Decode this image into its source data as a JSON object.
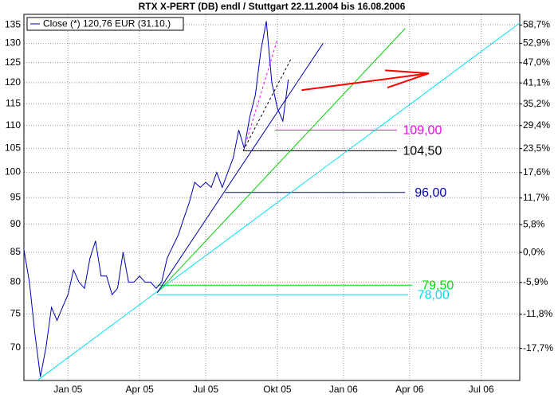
{
  "chart_data": {
    "type": "line",
    "title": "RTX X-PERT (DB) endl / Stuttgart 22.11.2004 bis 16.08.2006",
    "log_scale": true,
    "grid": true,
    "legend": "top-left",
    "categories": [
      null,
      null,
      null,
      null,
      null,
      null,
      null,
      null,
      "Jan 05",
      null,
      null,
      null,
      null,
      null,
      null,
      null,
      null,
      null,
      null,
      null,
      null,
      "Apr 05",
      null,
      null,
      null,
      null,
      null,
      null,
      null,
      null,
      null,
      null,
      null,
      "Jul 05",
      null,
      null,
      null,
      null,
      null,
      null,
      null,
      null,
      null,
      null,
      null,
      null,
      "Okt 05",
      null,
      null,
      null,
      null,
      null,
      null,
      null,
      null,
      null,
      null,
      null,
      "Jan 06",
      null,
      null,
      null,
      null,
      null,
      null,
      null,
      null,
      null,
      null,
      null,
      "Apr 06",
      null,
      null,
      null,
      null,
      null,
      null,
      null,
      null,
      null,
      null,
      null,
      null,
      "Jul 06",
      null,
      null,
      null,
      null,
      null,
      null,
      null
    ],
    "series": [
      {
        "name": "Close (*) 120,76 EUR (31.10.)",
        "color": "#0000b0",
        "values": [
          85.5,
          80,
          72,
          66,
          70,
          76,
          74,
          76,
          78,
          82,
          80,
          79,
          84,
          87,
          81,
          81,
          78,
          79,
          85,
          80,
          80,
          81,
          80,
          80,
          79,
          80,
          84,
          86,
          88,
          91,
          94,
          98,
          97,
          98,
          97,
          100,
          97,
          100,
          103,
          109,
          105,
          112,
          117,
          128,
          136,
          120,
          114,
          111,
          120.76,
          null,
          null,
          null,
          null,
          null,
          null,
          null,
          null,
          null,
          null,
          null,
          null,
          null,
          null,
          null,
          null,
          null,
          null,
          null,
          null,
          null,
          null,
          null,
          null,
          null,
          null,
          null,
          null,
          null,
          null,
          null,
          null,
          null,
          null,
          null,
          null,
          null,
          null,
          null,
          null,
          null,
          null
        ]
      }
    ],
    "ylim": [
      65.5,
      137.9
    ],
    "yticks": [
      70,
      75,
      80,
      85,
      90,
      95,
      100,
      105,
      110,
      115,
      120,
      125,
      130,
      135
    ],
    "y2lim": [
      -22.9,
      62.2
    ],
    "y2ticks": [
      {
        "value": -17.7,
        "label": "-17,7%"
      },
      {
        "value": -11.8,
        "label": "-11,8%"
      },
      {
        "value": -5.9,
        "label": "-5,9%"
      },
      {
        "value": 0,
        "label": "0,0%"
      },
      {
        "value": 5.8,
        "label": "5,8%"
      },
      {
        "value": 11.7,
        "label": "11,7%"
      },
      {
        "value": 17.6,
        "label": "17,6%"
      },
      {
        "value": 23.5,
        "label": "23,5%"
      },
      {
        "value": 29.4,
        "label": "29,4%"
      },
      {
        "value": 35.2,
        "label": "35,2%"
      },
      {
        "value": 41.1,
        "label": "41,1%"
      },
      {
        "value": 47.0,
        "label": "47,0%"
      },
      {
        "value": 52.9,
        "label": "52,9%"
      },
      {
        "value": 58.7,
        "label": "58,7%"
      }
    ],
    "levels": [
      {
        "value": 109,
        "label": "109,00",
        "color": "#ff00ff",
        "x": [
          45.6,
          67.7
        ]
      },
      {
        "value": 104.5,
        "label": "104,50",
        "color": "#000000",
        "x": [
          39.8,
          67.7
        ]
      },
      {
        "value": 96,
        "label": "96,00",
        "color": "#0000b0",
        "x": [
          36.5,
          69.2
        ]
      },
      {
        "value": 79.5,
        "label": "79,50",
        "color": "#00e000",
        "x": [
          24.2,
          70.5
        ]
      },
      {
        "value": 78,
        "label": "78,00",
        "color": "#00e0f0",
        "x": [
          24.2,
          69.7
        ]
      }
    ],
    "trendlines": [
      {
        "color": "#00e0f0",
        "x": [
          2.6,
          90
        ],
        "values": [
          65.6,
          135.5
        ]
      },
      {
        "color": "#00d000",
        "x": [
          24.2,
          69.2
        ],
        "values": [
          78.3,
          134
        ]
      },
      {
        "color": "#0000b0",
        "x": [
          24.2,
          54.3
        ],
        "values": [
          78.3,
          130
        ]
      },
      {
        "color": "#000000",
        "dashed": true,
        "x": [
          39.8,
          48.5
        ],
        "values": [
          104.5,
          126
        ]
      },
      {
        "color": "#ff00ff",
        "dashed": true,
        "x": [
          40.5,
          46
        ],
        "values": [
          107,
          131
        ]
      }
    ],
    "arrow": {
      "color": "#ff0000",
      "x": [
        50.4,
        73.5
      ],
      "values": [
        118.2,
        122.3
      ]
    }
  }
}
